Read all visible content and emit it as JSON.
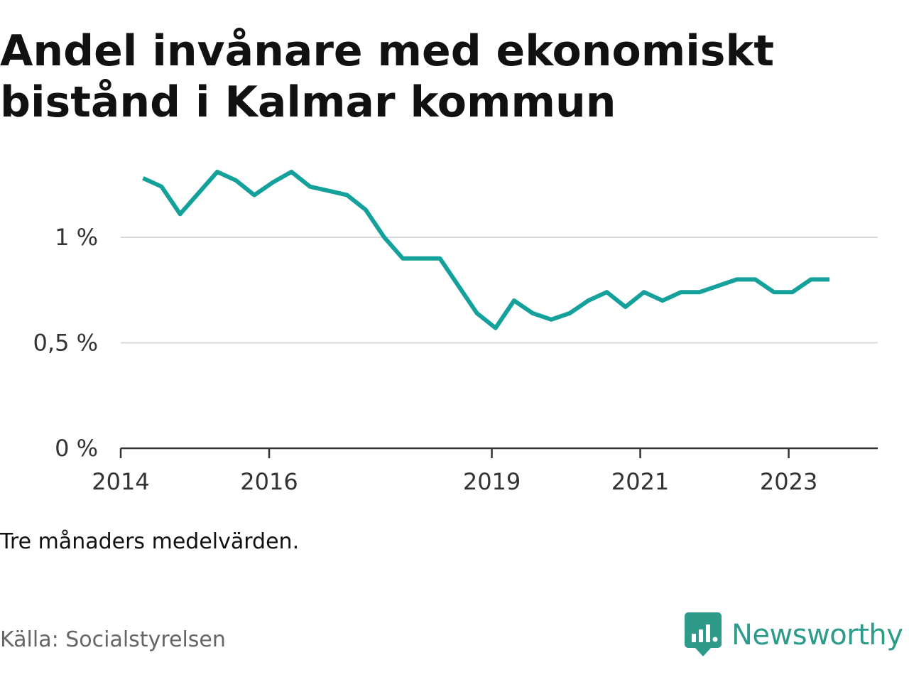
{
  "title": "Andel invånare med ekonomiskt bistånd i Kalmar kommun",
  "note": "Tre månaders medelvärden.",
  "source": "Källa: Socialstyrelsen",
  "brand": {
    "name": "Newsworthy",
    "icon": "newsworthy-logo-icon",
    "color": "#2e9a8a"
  },
  "chart_data": {
    "type": "line",
    "title": "Andel invånare med ekonomiskt bistånd i Kalmar kommun",
    "xlabel": "",
    "ylabel": "",
    "x_ticks": [
      "2014",
      "2016",
      "2019",
      "2021",
      "2023"
    ],
    "y_ticks": [
      "0 %",
      "0,5 %",
      "1 %"
    ],
    "y_tick_values": [
      0,
      0.5,
      1.0
    ],
    "ylim": [
      0,
      1.35
    ],
    "xlim": [
      2014.0,
      2024.2
    ],
    "grid": true,
    "legend": "none",
    "line_color": "#14a19b",
    "series": [
      {
        "x": [
          2014.3,
          2014.55,
          2014.8,
          2015.05,
          2015.3,
          2015.55,
          2015.8,
          2016.05,
          2016.3,
          2016.55,
          2016.8,
          2017.05,
          2017.3,
          2017.55,
          2017.8,
          2018.05,
          2018.3,
          2018.55,
          2018.8,
          2019.05,
          2019.3,
          2019.55,
          2019.8,
          2020.05,
          2020.3,
          2020.55,
          2020.8,
          2021.05,
          2021.3,
          2021.55,
          2021.8,
          2022.05,
          2022.3,
          2022.55,
          2022.8,
          2023.05,
          2023.3,
          2023.55
        ],
        "values": [
          1.28,
          1.24,
          1.11,
          1.21,
          1.31,
          1.27,
          1.2,
          1.26,
          1.31,
          1.24,
          1.22,
          1.2,
          1.13,
          1.0,
          0.9,
          0.9,
          0.9,
          0.77,
          0.64,
          0.57,
          0.7,
          0.64,
          0.61,
          0.64,
          0.7,
          0.74,
          0.67,
          0.74,
          0.7,
          0.74,
          0.74,
          0.77,
          0.8,
          0.8,
          0.74,
          0.74,
          0.8,
          0.8
        ]
      }
    ]
  }
}
